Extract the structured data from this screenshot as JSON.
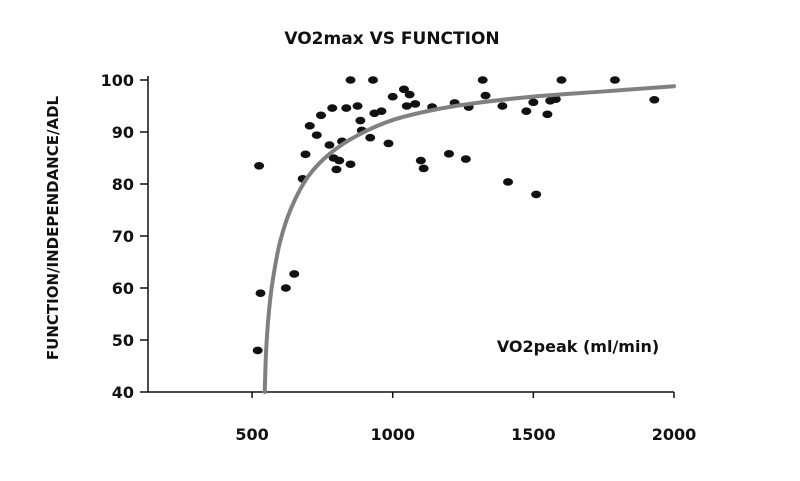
{
  "chart_data": {
    "type": "scatter",
    "title": "VO2max VS FUNCTION",
    "xlabel": "VO2peak (ml/min)",
    "ylabel": "FUNCTION/INDEPENDANCE/ADL",
    "xlim": [
      130,
      2000
    ],
    "ylim": [
      40,
      100
    ],
    "xticks": [
      500,
      1000,
      1500,
      2000
    ],
    "yticks": [
      40,
      50,
      60,
      70,
      80,
      90,
      100
    ],
    "grid": false,
    "colors": {
      "points": "#111111",
      "curve": "#808080",
      "axes": "#111111"
    },
    "points": [
      {
        "x": 520,
        "y": 48
      },
      {
        "x": 530,
        "y": 59
      },
      {
        "x": 525,
        "y": 83.5
      },
      {
        "x": 620,
        "y": 60
      },
      {
        "x": 650,
        "y": 62.7
      },
      {
        "x": 680,
        "y": 81
      },
      {
        "x": 690,
        "y": 85.7
      },
      {
        "x": 705,
        "y": 91.2
      },
      {
        "x": 730,
        "y": 89.4
      },
      {
        "x": 745,
        "y": 93.2
      },
      {
        "x": 775,
        "y": 87.5
      },
      {
        "x": 785,
        "y": 94.6
      },
      {
        "x": 790,
        "y": 85
      },
      {
        "x": 800,
        "y": 82.8
      },
      {
        "x": 810,
        "y": 84.5
      },
      {
        "x": 820,
        "y": 88.2
      },
      {
        "x": 835,
        "y": 94.6
      },
      {
        "x": 850,
        "y": 100
      },
      {
        "x": 850,
        "y": 83.8
      },
      {
        "x": 875,
        "y": 95
      },
      {
        "x": 885,
        "y": 92.2
      },
      {
        "x": 890,
        "y": 90.3
      },
      {
        "x": 920,
        "y": 88.9
      },
      {
        "x": 930,
        "y": 100
      },
      {
        "x": 935,
        "y": 93.6
      },
      {
        "x": 960,
        "y": 94
      },
      {
        "x": 985,
        "y": 87.8
      },
      {
        "x": 1000,
        "y": 96.8
      },
      {
        "x": 1040,
        "y": 98.2
      },
      {
        "x": 1050,
        "y": 95
      },
      {
        "x": 1060,
        "y": 97.2
      },
      {
        "x": 1080,
        "y": 95.4
      },
      {
        "x": 1100,
        "y": 84.5
      },
      {
        "x": 1110,
        "y": 83
      },
      {
        "x": 1140,
        "y": 94.8
      },
      {
        "x": 1200,
        "y": 85.8
      },
      {
        "x": 1220,
        "y": 95.6
      },
      {
        "x": 1260,
        "y": 84.8
      },
      {
        "x": 1270,
        "y": 94.8
      },
      {
        "x": 1320,
        "y": 100
      },
      {
        "x": 1330,
        "y": 97
      },
      {
        "x": 1390,
        "y": 95
      },
      {
        "x": 1410,
        "y": 80.4
      },
      {
        "x": 1475,
        "y": 94
      },
      {
        "x": 1500,
        "y": 95.7
      },
      {
        "x": 1510,
        "y": 78
      },
      {
        "x": 1550,
        "y": 93.4
      },
      {
        "x": 1560,
        "y": 96
      },
      {
        "x": 1580,
        "y": 96.3
      },
      {
        "x": 1600,
        "y": 100
      },
      {
        "x": 1790,
        "y": 100
      },
      {
        "x": 1930,
        "y": 96.2
      }
    ],
    "curve": [
      {
        "x": 545,
        "y": 40
      },
      {
        "x": 550,
        "y": 48
      },
      {
        "x": 560,
        "y": 55.5
      },
      {
        "x": 575,
        "y": 62
      },
      {
        "x": 600,
        "y": 69
      },
      {
        "x": 640,
        "y": 75.5
      },
      {
        "x": 700,
        "y": 81.5
      },
      {
        "x": 780,
        "y": 86
      },
      {
        "x": 880,
        "y": 89.5
      },
      {
        "x": 1000,
        "y": 92.3
      },
      {
        "x": 1150,
        "y": 94.3
      },
      {
        "x": 1300,
        "y": 95.6
      },
      {
        "x": 1500,
        "y": 96.8
      },
      {
        "x": 1750,
        "y": 97.8
      },
      {
        "x": 2000,
        "y": 98.8
      }
    ]
  }
}
